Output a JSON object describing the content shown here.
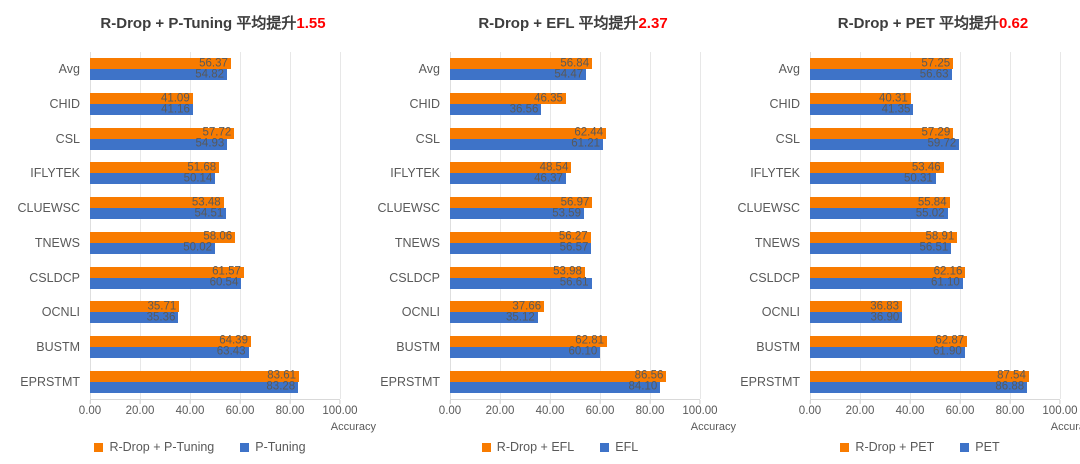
{
  "colors": {
    "series_orange": "#f87b00",
    "series_blue": "#3e73c8",
    "highlight_red": "#ff0000",
    "gridline": "#e7e7e7",
    "text_gray": "#595959",
    "title_gray": "#3d3d3d"
  },
  "chart_data": [
    {
      "type": "bar",
      "orientation": "horizontal",
      "title": "R-Drop + P-Tuning 平均提升",
      "title_highlight": "1.55",
      "categories": [
        "Avg",
        "CHID",
        "CSL",
        "IFLYTEK",
        "CLUEWSC",
        "TNEWS",
        "CSLDCP",
        "OCNLI",
        "BUSTM",
        "EPRSTMT"
      ],
      "series": [
        {
          "name": "R-Drop + P-Tuning",
          "color": "#f87b00",
          "values": [
            56.37,
            41.09,
            57.72,
            51.68,
            53.48,
            58.06,
            61.57,
            35.71,
            64.39,
            83.61
          ]
        },
        {
          "name": "P-Tuning",
          "color": "#3e73c8",
          "values": [
            54.82,
            41.16,
            54.93,
            50.14,
            54.51,
            50.02,
            60.54,
            35.36,
            63.43,
            83.28
          ]
        }
      ],
      "xlabel": "Accuracy",
      "xlim": [
        0,
        100
      ],
      "xticks": [
        "0.00",
        "20.00",
        "40.00",
        "60.00",
        "80.00",
        "100.00"
      ],
      "grid": true,
      "legend_position": "bottom"
    },
    {
      "type": "bar",
      "orientation": "horizontal",
      "title": "R-Drop + EFL 平均提升",
      "title_highlight": "2.37",
      "categories": [
        "Avg",
        "CHID",
        "CSL",
        "IFLYTEK",
        "CLUEWSC",
        "TNEWS",
        "CSLDCP",
        "OCNLI",
        "BUSTM",
        "EPRSTMT"
      ],
      "series": [
        {
          "name": "R-Drop + EFL",
          "color": "#f87b00",
          "values": [
            56.84,
            46.35,
            62.44,
            48.54,
            56.97,
            56.27,
            53.98,
            37.66,
            62.81,
            86.56
          ]
        },
        {
          "name": "EFL",
          "color": "#3e73c8",
          "values": [
            54.47,
            36.56,
            61.21,
            46.37,
            53.59,
            56.57,
            56.61,
            35.12,
            60.1,
            84.1
          ]
        }
      ],
      "xlabel": "Accuracy",
      "xlim": [
        0,
        100
      ],
      "xticks": [
        "0.00",
        "20.00",
        "40.00",
        "60.00",
        "80.00",
        "100.00"
      ],
      "grid": true,
      "legend_position": "bottom"
    },
    {
      "type": "bar",
      "orientation": "horizontal",
      "title": "R-Drop + PET 平均提升",
      "title_highlight": "0.62",
      "categories": [
        "Avg",
        "CHID",
        "CSL",
        "IFLYTEK",
        "CLUEWSC",
        "TNEWS",
        "CSLDCP",
        "OCNLI",
        "BUSTM",
        "EPRSTMT"
      ],
      "series": [
        {
          "name": "R-Drop + PET",
          "color": "#f87b00",
          "values": [
            57.25,
            40.31,
            57.29,
            53.46,
            55.84,
            58.91,
            62.16,
            36.83,
            62.87,
            87.54
          ]
        },
        {
          "name": "PET",
          "color": "#3e73c8",
          "values": [
            56.63,
            41.35,
            59.72,
            50.31,
            55.02,
            56.51,
            61.1,
            36.9,
            61.9,
            86.88
          ]
        }
      ],
      "xlabel": "Accuracy",
      "xlim": [
        0,
        100
      ],
      "xticks": [
        "0.00",
        "20.00",
        "40.00",
        "60.00",
        "80.00",
        "100.00"
      ],
      "grid": true,
      "legend_position": "bottom"
    }
  ]
}
